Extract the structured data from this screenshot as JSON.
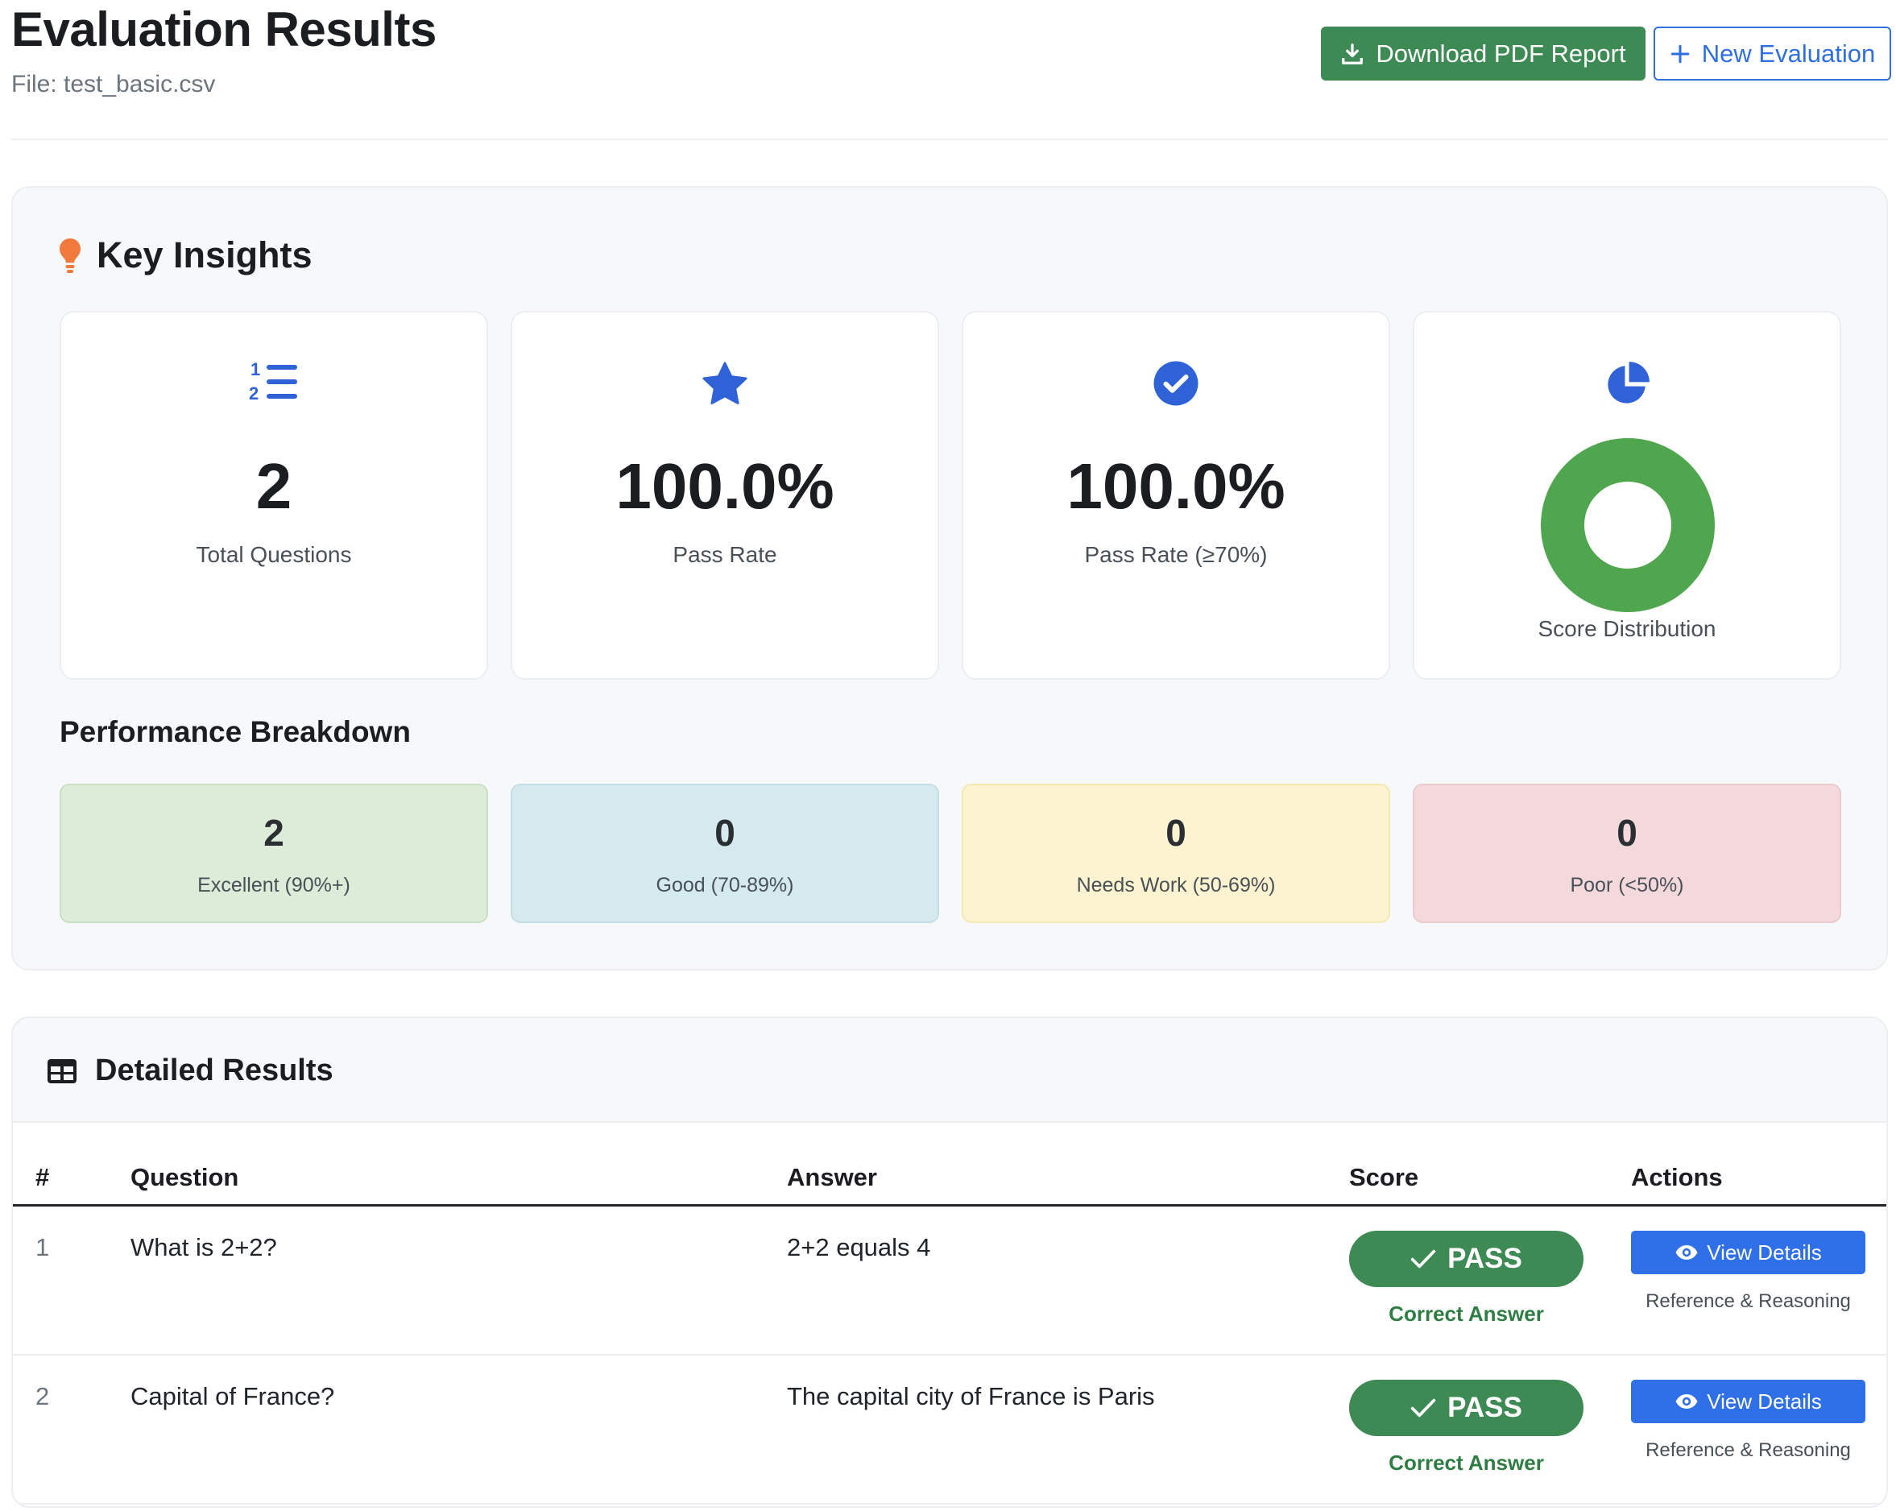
{
  "header": {
    "title": "Evaluation Results",
    "file_line": "File: test_basic.csv",
    "download_label": "Download PDF Report",
    "new_label": "New Evaluation"
  },
  "insights": {
    "title": "Key Insights",
    "cards": [
      {
        "value": "2",
        "label": "Total Questions",
        "icon": "numbered-list-icon"
      },
      {
        "value": "100.0%",
        "label": "Pass Rate",
        "icon": "star-icon"
      },
      {
        "value": "100.0%",
        "label": "Pass Rate (≥70%)",
        "icon": "check-circle-icon"
      },
      {
        "label": "Score Distribution",
        "icon": "pie-chart-icon"
      }
    ],
    "score_distribution": {
      "excellent": 2,
      "good": 0,
      "needs_work": 0,
      "poor": 0
    }
  },
  "breakdown": {
    "title": "Performance Breakdown",
    "items": [
      {
        "value": "2",
        "label": "Excellent (90%+)",
        "bg": "#dcecd8"
      },
      {
        "value": "0",
        "label": "Good (70-89%)",
        "bg": "#d5eaee"
      },
      {
        "value": "0",
        "label": "Needs Work (50-69%)",
        "bg": "#fdf3d0"
      },
      {
        "value": "0",
        "label": "Poor (<50%)",
        "bg": "#f4d9dc"
      }
    ]
  },
  "results": {
    "title": "Detailed Results",
    "columns": [
      "#",
      "Question",
      "Answer",
      "Score",
      "Actions"
    ],
    "rows": [
      {
        "num": "1",
        "question": "What is 2+2?",
        "answer": "2+2 equals 4",
        "status": "PASS",
        "status_sub": "Correct Answer",
        "action": "View Details",
        "action_sub": "Reference & Reasoning"
      },
      {
        "num": "2",
        "question": "Capital of France?",
        "answer": "The capital city of France is Paris",
        "status": "PASS",
        "status_sub": "Correct Answer",
        "action": "View Details",
        "action_sub": "Reference & Reasoning"
      }
    ]
  },
  "colors": {
    "pass_green": "#3d8a55",
    "accent_blue": "#2f6fe0",
    "donut_green": "#4fa64f",
    "bulb_orange": "#f07a3c"
  }
}
